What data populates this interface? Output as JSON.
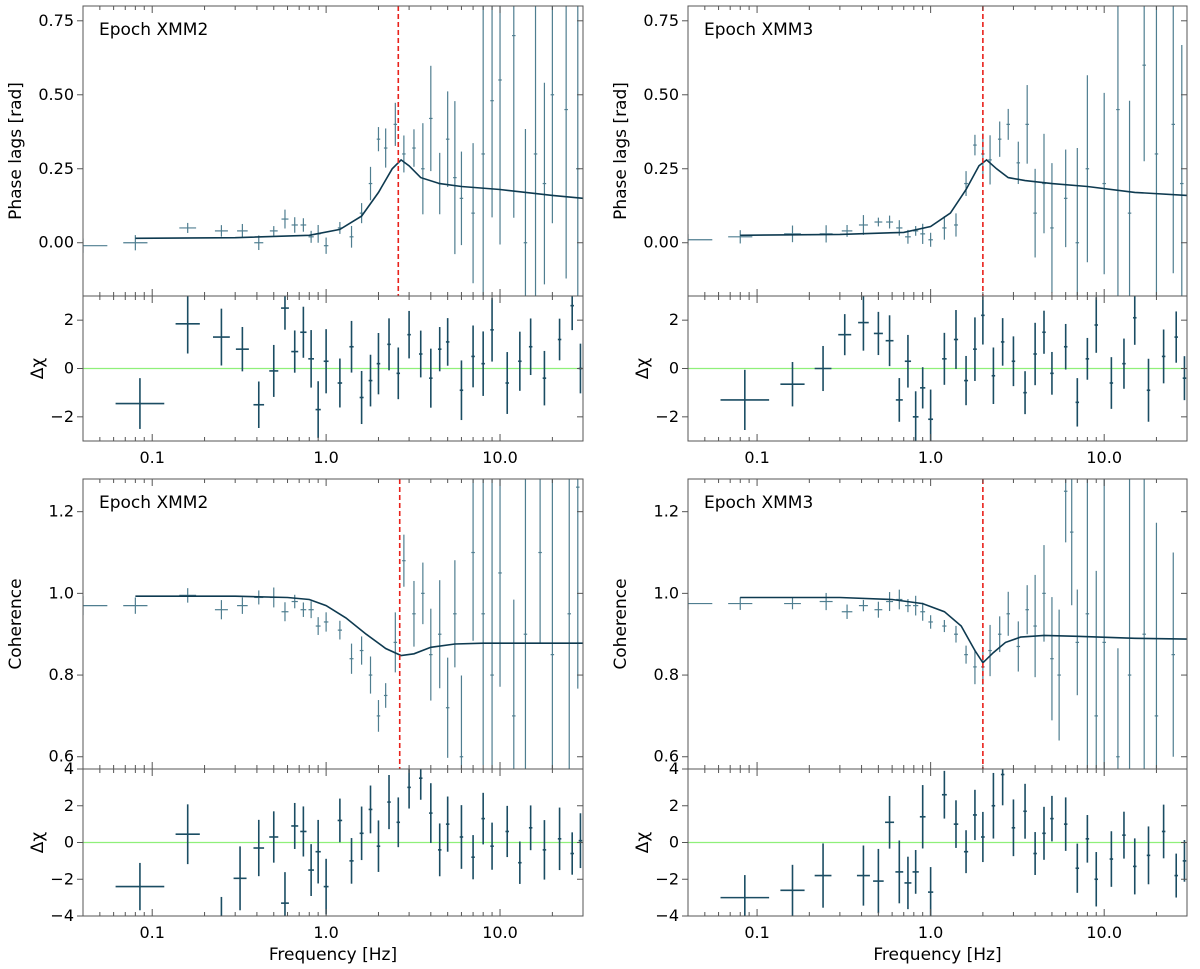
{
  "colors": {
    "data": "#4f7e90",
    "data_dark": "#1b4d63",
    "model": "#0e3a50",
    "vline": "#e8211b",
    "zero_line": "#8ff07a",
    "axis": "#555555"
  },
  "chart_data": [
    {
      "type": "scatter",
      "panel": "top-left",
      "title": "Epoch XMM2",
      "xlabel": "",
      "ylabel": "Phase lags [rad]",
      "xscale": "log",
      "xlim": [
        0.04,
        30
      ],
      "ylim": [
        -0.18,
        0.8
      ],
      "yticks": [
        0.0,
        0.25,
        0.5,
        0.75
      ],
      "ytick_labels": [
        "0.00",
        "0.25",
        "0.50",
        "0.75"
      ],
      "vline_x": 2.6,
      "model": {
        "x": [
          0.08,
          0.3,
          0.8,
          1.2,
          1.6,
          2.0,
          2.4,
          2.7,
          3.0,
          3.5,
          4.5,
          6,
          10,
          20,
          30
        ],
        "y": [
          0.015,
          0.017,
          0.025,
          0.045,
          0.09,
          0.17,
          0.25,
          0.28,
          0.26,
          0.22,
          0.2,
          0.19,
          0.18,
          0.16,
          0.15
        ]
      },
      "points": {
        "x": [
          0.04,
          0.08,
          0.16,
          0.25,
          0.33,
          0.41,
          0.5,
          0.58,
          0.66,
          0.74,
          0.82,
          0.9,
          1.0,
          1.2,
          1.4,
          1.6,
          1.8,
          2.0,
          2.2,
          2.5,
          2.8,
          3.2,
          3.6,
          4.0,
          4.5,
          5.0,
          5.5,
          6.0,
          7.0,
          8.0,
          9.0,
          10.0,
          12.0,
          14.0,
          16.0,
          18.0,
          20.0,
          24.0,
          28.0
        ],
        "y": [
          -0.01,
          0.0,
          0.05,
          0.04,
          0.04,
          0.0,
          0.04,
          0.08,
          0.06,
          0.06,
          0.02,
          0.03,
          -0.01,
          0.05,
          0.02,
          0.1,
          0.2,
          0.35,
          0.32,
          0.4,
          0.3,
          0.32,
          0.25,
          0.42,
          0.2,
          0.35,
          0.22,
          0.15,
          0.1,
          0.3,
          0.48,
          0.55,
          0.7,
          0.0,
          0.3,
          0.2,
          0.5,
          0.45,
          0.25
        ]
      }
    },
    {
      "type": "scatter",
      "panel": "top-left-residual",
      "xlabel": "",
      "ylabel": "Δχ",
      "xscale": "log",
      "xlim": [
        0.04,
        30
      ],
      "ylim": [
        -3,
        3
      ],
      "yticks": [
        -2,
        0,
        2
      ],
      "ytick_labels": [
        "−2",
        "0",
        "2"
      ],
      "xticks": [
        0.1,
        1.0,
        10.0
      ],
      "xtick_labels": [
        "0.1",
        "1.0",
        "10.0"
      ],
      "points": {
        "x": [
          0.085,
          0.16,
          0.25,
          0.33,
          0.41,
          0.5,
          0.58,
          0.66,
          0.74,
          0.82,
          0.9,
          1.0,
          1.2,
          1.4,
          1.6,
          1.8,
          2.0,
          2.3,
          2.6,
          3.0,
          3.5,
          4.0,
          4.5,
          5.0,
          6.0,
          7.0,
          8.0,
          9.0,
          11.0,
          13.0,
          15.0,
          18.0,
          22.0,
          26.0,
          29.0
        ],
        "y": [
          -1.45,
          1.85,
          1.3,
          0.8,
          -1.5,
          -0.1,
          2.5,
          0.7,
          1.5,
          0.4,
          -1.7,
          0.3,
          -0.6,
          0.9,
          -1.2,
          -0.5,
          0.2,
          1.0,
          -0.2,
          1.4,
          0.6,
          -0.4,
          0.8,
          1.1,
          -0.9,
          0.5,
          0.2,
          1.6,
          -0.6,
          0.3,
          0.9,
          -0.4,
          1.2,
          2.6,
          0.0
        ]
      }
    },
    {
      "type": "scatter",
      "panel": "top-right",
      "title": "Epoch XMM3",
      "xlabel": "",
      "ylabel": "Phase lags [rad]",
      "xscale": "log",
      "xlim": [
        0.04,
        30
      ],
      "ylim": [
        -0.18,
        0.8
      ],
      "yticks": [
        0.0,
        0.25,
        0.5,
        0.75
      ],
      "ytick_labels": [
        "0.00",
        "0.25",
        "0.50",
        "0.75"
      ],
      "vline_x": 2.0,
      "model": {
        "x": [
          0.08,
          0.3,
          0.7,
          1.0,
          1.3,
          1.6,
          1.9,
          2.1,
          2.4,
          2.8,
          3.5,
          5,
          8,
          15,
          30
        ],
        "y": [
          0.025,
          0.028,
          0.035,
          0.055,
          0.1,
          0.18,
          0.26,
          0.28,
          0.25,
          0.22,
          0.21,
          0.2,
          0.19,
          0.17,
          0.16
        ]
      },
      "points": {
        "x": [
          0.04,
          0.08,
          0.16,
          0.25,
          0.33,
          0.41,
          0.5,
          0.58,
          0.66,
          0.74,
          0.82,
          0.9,
          1.0,
          1.2,
          1.4,
          1.6,
          1.8,
          2.0,
          2.2,
          2.5,
          2.8,
          3.2,
          3.6,
          4.0,
          4.5,
          5.0,
          6.0,
          7.0,
          8.0,
          10.0,
          12.0,
          14.0,
          17.0,
          20.0,
          25.0,
          28.0
        ],
        "y": [
          0.01,
          0.02,
          0.03,
          0.03,
          0.04,
          0.06,
          0.07,
          0.07,
          0.05,
          0.02,
          0.04,
          0.03,
          0.01,
          0.05,
          0.06,
          0.2,
          0.33,
          0.3,
          0.28,
          0.35,
          0.4,
          0.27,
          0.4,
          0.1,
          0.2,
          0.05,
          0.15,
          0.0,
          0.25,
          0.2,
          0.45,
          0.1,
          0.6,
          0.3,
          0.4,
          0.2
        ]
      }
    },
    {
      "type": "scatter",
      "panel": "top-right-residual",
      "xlabel": "",
      "ylabel": "Δχ",
      "xscale": "log",
      "xlim": [
        0.04,
        30
      ],
      "ylim": [
        -3,
        3
      ],
      "yticks": [
        -2,
        0,
        2
      ],
      "ytick_labels": [
        "−2",
        "0",
        "2"
      ],
      "xticks": [
        0.1,
        1.0,
        10.0
      ],
      "xtick_labels": [
        "0.1",
        "1.0",
        "10.0"
      ],
      "points": {
        "x": [
          0.085,
          0.16,
          0.24,
          0.32,
          0.41,
          0.5,
          0.58,
          0.66,
          0.74,
          0.82,
          0.9,
          1.0,
          1.2,
          1.4,
          1.6,
          1.8,
          2.0,
          2.3,
          2.6,
          3.0,
          3.5,
          4.0,
          4.5,
          5.0,
          6.0,
          7.0,
          8.0,
          9.0,
          11.0,
          13.0,
          15.0,
          18.0,
          22.0,
          26.0,
          29.0
        ],
        "y": [
          -1.3,
          -0.65,
          0.0,
          1.4,
          1.9,
          1.45,
          1.15,
          -1.3,
          0.3,
          -2.0,
          -0.8,
          -2.1,
          0.4,
          1.2,
          -0.5,
          0.8,
          2.2,
          -0.3,
          1.1,
          0.3,
          -1.0,
          0.6,
          1.5,
          -0.2,
          0.9,
          -1.4,
          0.4,
          1.8,
          -0.6,
          0.2,
          2.1,
          -0.9,
          0.5,
          1.3,
          -0.4
        ]
      }
    },
    {
      "type": "scatter",
      "panel": "bottom-left",
      "title": "Epoch XMM2",
      "xlabel": "",
      "ylabel": "Coherence",
      "xscale": "log",
      "xlim": [
        0.04,
        30
      ],
      "ylim": [
        0.57,
        1.28
      ],
      "yticks": [
        0.6,
        0.8,
        1.0,
        1.2
      ],
      "ytick_labels": [
        "0.6",
        "0.8",
        "1.0",
        "1.2"
      ],
      "vline_x": 2.65,
      "model": {
        "x": [
          0.08,
          0.3,
          0.6,
          0.8,
          1.0,
          1.3,
          1.7,
          2.2,
          2.7,
          3.2,
          4.0,
          5.5,
          8,
          15,
          30
        ],
        "y": [
          0.993,
          0.993,
          0.99,
          0.985,
          0.97,
          0.94,
          0.9,
          0.865,
          0.848,
          0.852,
          0.868,
          0.876,
          0.878,
          0.878,
          0.878
        ]
      },
      "points": {
        "x": [
          0.04,
          0.08,
          0.16,
          0.25,
          0.33,
          0.41,
          0.5,
          0.58,
          0.66,
          0.74,
          0.82,
          0.9,
          1.0,
          1.2,
          1.4,
          1.6,
          1.8,
          2.0,
          2.2,
          2.5,
          2.8,
          3.2,
          3.6,
          4.0,
          4.5,
          5.0,
          5.5,
          6.0,
          7.0,
          8.0,
          9.0,
          10.0,
          12.0,
          14.0,
          17.0,
          20.0,
          25.0,
          28.0
        ],
        "y": [
          0.97,
          0.97,
          0.995,
          0.96,
          0.97,
          0.99,
          0.99,
          0.955,
          0.98,
          0.96,
          0.96,
          0.92,
          0.93,
          0.91,
          0.84,
          0.86,
          0.8,
          0.7,
          0.75,
          0.88,
          1.08,
          0.95,
          1.0,
          0.85,
          0.9,
          0.72,
          0.95,
          0.6,
          1.1,
          0.95,
          0.8,
          1.05,
          0.7,
          0.9,
          1.1,
          0.85,
          0.95,
          1.26
        ]
      }
    },
    {
      "type": "scatter",
      "panel": "bottom-left-residual",
      "xlabel": "Frequency [Hz]",
      "ylabel": "Δχ",
      "xscale": "log",
      "xlim": [
        0.04,
        30
      ],
      "ylim": [
        -4,
        4
      ],
      "yticks": [
        -4,
        -2,
        0,
        2,
        4
      ],
      "ytick_labels": [
        "−4",
        "−2",
        "0",
        "2",
        "4"
      ],
      "xticks": [
        0.1,
        1.0,
        10.0
      ],
      "xtick_labels": [
        "0.1",
        "1.0",
        "10.0"
      ],
      "points": {
        "x": [
          0.085,
          0.16,
          0.25,
          0.32,
          0.41,
          0.5,
          0.58,
          0.66,
          0.74,
          0.82,
          0.9,
          1.0,
          1.2,
          1.4,
          1.6,
          1.8,
          2.0,
          2.3,
          2.6,
          3.0,
          3.5,
          4.0,
          4.5,
          5.0,
          6.0,
          7.0,
          8.0,
          9.0,
          11.0,
          13.0,
          15.0,
          18.0,
          22.0,
          26.0,
          29.0
        ],
        "y": [
          -2.4,
          0.45,
          -4.3,
          -1.95,
          -0.3,
          0.3,
          -3.3,
          0.9,
          0.6,
          -1.5,
          -0.5,
          -2.4,
          1.2,
          -1.0,
          0.5,
          1.8,
          -0.2,
          2.2,
          1.1,
          3.0,
          3.5,
          1.6,
          -0.4,
          1.0,
          0.3,
          -0.8,
          1.3,
          -0.2,
          0.6,
          -1.1,
          0.8,
          -0.4,
          0.2,
          -0.6,
          0.1
        ]
      }
    },
    {
      "type": "scatter",
      "panel": "bottom-right",
      "title": "Epoch XMM3",
      "xlabel": "",
      "ylabel": "Coherence",
      "xscale": "log",
      "xlim": [
        0.04,
        30
      ],
      "ylim": [
        0.57,
        1.28
      ],
      "yticks": [
        0.6,
        0.8,
        1.0,
        1.2
      ],
      "ytick_labels": [
        "0.6",
        "0.8",
        "1.0",
        "1.2"
      ],
      "vline_x": 2.0,
      "model": {
        "x": [
          0.08,
          0.3,
          0.6,
          0.9,
          1.2,
          1.5,
          1.8,
          2.0,
          2.3,
          2.7,
          3.3,
          4.5,
          7,
          15,
          30
        ],
        "y": [
          0.99,
          0.99,
          0.985,
          0.975,
          0.955,
          0.92,
          0.86,
          0.83,
          0.855,
          0.88,
          0.893,
          0.897,
          0.895,
          0.89,
          0.888
        ]
      },
      "points": {
        "x": [
          0.04,
          0.08,
          0.16,
          0.25,
          0.33,
          0.41,
          0.5,
          0.58,
          0.66,
          0.74,
          0.82,
          0.9,
          1.0,
          1.2,
          1.4,
          1.6,
          1.8,
          2.0,
          2.2,
          2.5,
          2.8,
          3.2,
          3.6,
          4.0,
          4.5,
          5.0,
          5.5,
          6.0,
          6.5,
          7.0,
          8.0,
          9.0,
          10.0,
          12.0,
          14.0,
          17.0,
          20.0,
          25.0
        ],
        "y": [
          0.975,
          0.975,
          0.975,
          0.98,
          0.955,
          0.97,
          0.96,
          0.98,
          0.985,
          0.97,
          0.97,
          0.955,
          0.93,
          0.92,
          0.9,
          0.85,
          0.82,
          0.82,
          0.86,
          0.9,
          0.95,
          0.87,
          0.96,
          0.92,
          1.0,
          0.84,
          0.8,
          1.25,
          1.15,
          0.88,
          0.95,
          0.7,
          0.88,
          0.6,
          0.8,
          0.9,
          0.7,
          0.85
        ]
      }
    },
    {
      "type": "scatter",
      "panel": "bottom-right-residual",
      "xlabel": "Frequency [Hz]",
      "ylabel": "Δχ",
      "xscale": "log",
      "xlim": [
        0.04,
        30
      ],
      "ylim": [
        -4,
        4
      ],
      "yticks": [
        -4,
        -2,
        0,
        2,
        4
      ],
      "ytick_labels": [
        "−4",
        "−2",
        "0",
        "2",
        "4"
      ],
      "xticks": [
        0.1,
        1.0,
        10.0
      ],
      "xtick_labels": [
        "0.1",
        "1.0",
        "10.0"
      ],
      "points": {
        "x": [
          0.085,
          0.16,
          0.24,
          0.41,
          0.5,
          0.58,
          0.66,
          0.74,
          0.82,
          0.9,
          1.0,
          1.2,
          1.4,
          1.6,
          1.8,
          2.0,
          2.3,
          2.6,
          3.0,
          3.5,
          4.0,
          4.5,
          5.0,
          6.0,
          7.0,
          8.0,
          9.0,
          11.0,
          13.0,
          15.0,
          18.0,
          22.0,
          26.0,
          29.0
        ],
        "y": [
          -3.0,
          -2.6,
          -1.8,
          -1.8,
          -2.1,
          1.1,
          -1.6,
          -2.2,
          -1.6,
          1.4,
          -2.7,
          2.6,
          1.0,
          -0.5,
          1.5,
          0.3,
          2.0,
          3.7,
          0.8,
          1.7,
          -0.6,
          0.5,
          1.3,
          1.0,
          -1.4,
          0.2,
          -2.0,
          -0.9,
          0.4,
          -1.3,
          -0.7,
          0.6,
          -1.8,
          -1.0
        ]
      }
    }
  ]
}
